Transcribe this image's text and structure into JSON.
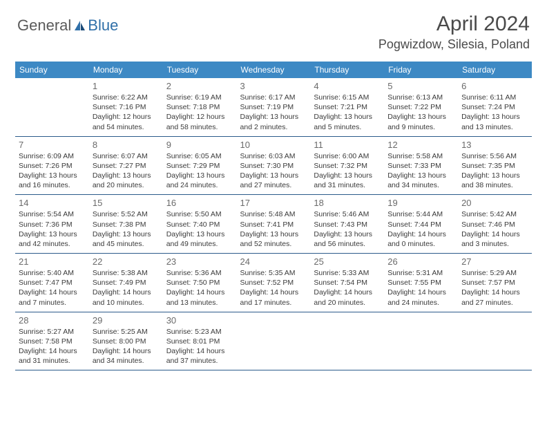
{
  "logo": {
    "part1": "General",
    "part2": "Blue"
  },
  "title": "April 2024",
  "location": "Pogwizdow, Silesia, Poland",
  "weekdays": [
    "Sunday",
    "Monday",
    "Tuesday",
    "Wednesday",
    "Thursday",
    "Friday",
    "Saturday"
  ],
  "colors": {
    "header_bg": "#3d89c4",
    "header_text": "#ffffff",
    "border": "#2a5a8a",
    "logo_gray": "#5a5a5a",
    "logo_blue": "#2f6fa8"
  },
  "firstDayOffset": 1,
  "days": [
    {
      "n": 1,
      "sunrise": "6:22 AM",
      "sunset": "7:16 PM",
      "daylight": "12 hours and 54 minutes."
    },
    {
      "n": 2,
      "sunrise": "6:19 AM",
      "sunset": "7:18 PM",
      "daylight": "12 hours and 58 minutes."
    },
    {
      "n": 3,
      "sunrise": "6:17 AM",
      "sunset": "7:19 PM",
      "daylight": "13 hours and 2 minutes."
    },
    {
      "n": 4,
      "sunrise": "6:15 AM",
      "sunset": "7:21 PM",
      "daylight": "13 hours and 5 minutes."
    },
    {
      "n": 5,
      "sunrise": "6:13 AM",
      "sunset": "7:22 PM",
      "daylight": "13 hours and 9 minutes."
    },
    {
      "n": 6,
      "sunrise": "6:11 AM",
      "sunset": "7:24 PM",
      "daylight": "13 hours and 13 minutes."
    },
    {
      "n": 7,
      "sunrise": "6:09 AM",
      "sunset": "7:26 PM",
      "daylight": "13 hours and 16 minutes."
    },
    {
      "n": 8,
      "sunrise": "6:07 AM",
      "sunset": "7:27 PM",
      "daylight": "13 hours and 20 minutes."
    },
    {
      "n": 9,
      "sunrise": "6:05 AM",
      "sunset": "7:29 PM",
      "daylight": "13 hours and 24 minutes."
    },
    {
      "n": 10,
      "sunrise": "6:03 AM",
      "sunset": "7:30 PM",
      "daylight": "13 hours and 27 minutes."
    },
    {
      "n": 11,
      "sunrise": "6:00 AM",
      "sunset": "7:32 PM",
      "daylight": "13 hours and 31 minutes."
    },
    {
      "n": 12,
      "sunrise": "5:58 AM",
      "sunset": "7:33 PM",
      "daylight": "13 hours and 34 minutes."
    },
    {
      "n": 13,
      "sunrise": "5:56 AM",
      "sunset": "7:35 PM",
      "daylight": "13 hours and 38 minutes."
    },
    {
      "n": 14,
      "sunrise": "5:54 AM",
      "sunset": "7:36 PM",
      "daylight": "13 hours and 42 minutes."
    },
    {
      "n": 15,
      "sunrise": "5:52 AM",
      "sunset": "7:38 PM",
      "daylight": "13 hours and 45 minutes."
    },
    {
      "n": 16,
      "sunrise": "5:50 AM",
      "sunset": "7:40 PM",
      "daylight": "13 hours and 49 minutes."
    },
    {
      "n": 17,
      "sunrise": "5:48 AM",
      "sunset": "7:41 PM",
      "daylight": "13 hours and 52 minutes."
    },
    {
      "n": 18,
      "sunrise": "5:46 AM",
      "sunset": "7:43 PM",
      "daylight": "13 hours and 56 minutes."
    },
    {
      "n": 19,
      "sunrise": "5:44 AM",
      "sunset": "7:44 PM",
      "daylight": "14 hours and 0 minutes."
    },
    {
      "n": 20,
      "sunrise": "5:42 AM",
      "sunset": "7:46 PM",
      "daylight": "14 hours and 3 minutes."
    },
    {
      "n": 21,
      "sunrise": "5:40 AM",
      "sunset": "7:47 PM",
      "daylight": "14 hours and 7 minutes."
    },
    {
      "n": 22,
      "sunrise": "5:38 AM",
      "sunset": "7:49 PM",
      "daylight": "14 hours and 10 minutes."
    },
    {
      "n": 23,
      "sunrise": "5:36 AM",
      "sunset": "7:50 PM",
      "daylight": "14 hours and 13 minutes."
    },
    {
      "n": 24,
      "sunrise": "5:35 AM",
      "sunset": "7:52 PM",
      "daylight": "14 hours and 17 minutes."
    },
    {
      "n": 25,
      "sunrise": "5:33 AM",
      "sunset": "7:54 PM",
      "daylight": "14 hours and 20 minutes."
    },
    {
      "n": 26,
      "sunrise": "5:31 AM",
      "sunset": "7:55 PM",
      "daylight": "14 hours and 24 minutes."
    },
    {
      "n": 27,
      "sunrise": "5:29 AM",
      "sunset": "7:57 PM",
      "daylight": "14 hours and 27 minutes."
    },
    {
      "n": 28,
      "sunrise": "5:27 AM",
      "sunset": "7:58 PM",
      "daylight": "14 hours and 31 minutes."
    },
    {
      "n": 29,
      "sunrise": "5:25 AM",
      "sunset": "8:00 PM",
      "daylight": "14 hours and 34 minutes."
    },
    {
      "n": 30,
      "sunrise": "5:23 AM",
      "sunset": "8:01 PM",
      "daylight": "14 hours and 37 minutes."
    }
  ]
}
